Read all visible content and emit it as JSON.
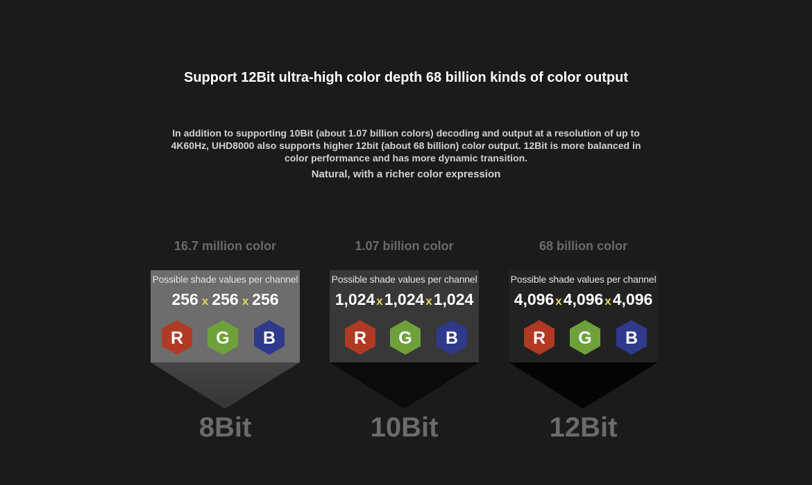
{
  "title": "Support 12Bit ultra-high color depth 68 billion kinds of color output",
  "description": "In addition to supporting 10Bit (about 1.07 billion colors) decoding and output at a resolution of up to 4K60Hz, UHD8000 also supports higher 12bit (about 68 billion) color output. 12Bit is more balanced in color performance and has more dynamic transition.",
  "tagline": "Natural, with a richer color expression",
  "cards": [
    {
      "heading": "16.7 million color",
      "panel_label": "Possible shade values per channel",
      "values": [
        "256",
        "256",
        "256"
      ],
      "multiplier": "x",
      "channels": [
        "R",
        "G",
        "B"
      ],
      "bits": "8Bit",
      "panel_color": "#6d6d6d"
    },
    {
      "heading": "1.07 billion color",
      "panel_label": "Possible shade values per channel",
      "values": [
        "1,024",
        "1,024",
        "1,024"
      ],
      "multiplier": "x",
      "channels": [
        "R",
        "G",
        "B"
      ],
      "bits": "10Bit",
      "panel_color": "#383838"
    },
    {
      "heading": "68 billion color",
      "panel_label": "Possible shade values per channel",
      "values": [
        "4,096",
        "4,096",
        "4,096"
      ],
      "multiplier": "x",
      "channels": [
        "R",
        "G",
        "B"
      ],
      "bits": "12Bit",
      "panel_color": "#222222"
    }
  ],
  "channel_colors": {
    "R": "#b13a25",
    "G": "#6fa13a",
    "B": "#2f3a8c"
  },
  "colors": {
    "background": "#1b1b1b",
    "multiplier": "#e4d85a"
  }
}
